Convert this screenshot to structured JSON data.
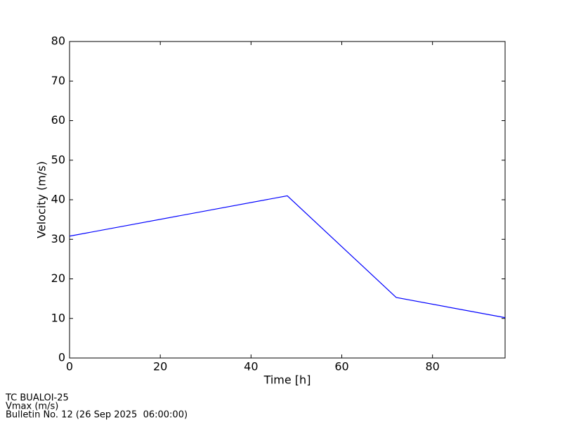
{
  "chart_data": {
    "type": "line",
    "xlabel": "Time [h]",
    "ylabel": "Velocity (m/s)",
    "x": [
      0,
      48,
      72,
      96
    ],
    "series": [
      {
        "name": "Vmax",
        "color": "#0000ff",
        "values": [
          30.8,
          41,
          15.3,
          10.2
        ]
      }
    ],
    "xlim": [
      0,
      96
    ],
    "ylim": [
      0,
      80
    ],
    "xticks": [
      0,
      20,
      40,
      60,
      80
    ],
    "yticks": [
      0,
      10,
      20,
      30,
      40,
      50,
      60,
      70,
      80
    ],
    "footer": [
      "TC BUALOI-25",
      "Vmax (m/s)",
      "Bulletin No. 12 (26 Sep 2025  06:00:00)"
    ]
  }
}
